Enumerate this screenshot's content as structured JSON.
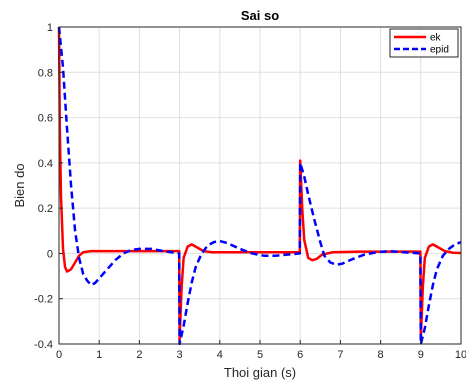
{
  "chart_data": {
    "type": "line",
    "title": "Sai so",
    "xlabel": "Thoi gian (s)",
    "ylabel": "Bien do",
    "xlim": [
      0,
      10
    ],
    "ylim": [
      -0.4,
      1
    ],
    "xticks": [
      0,
      1,
      2,
      3,
      4,
      5,
      6,
      7,
      8,
      9,
      10
    ],
    "yticks": [
      -0.4,
      -0.2,
      0,
      0.2,
      0.4,
      0.6,
      0.8,
      1
    ],
    "grid": true,
    "legend_position": "top-right",
    "series": [
      {
        "name": "ek",
        "color": "#ff0000",
        "style": "solid",
        "points": [
          [
            0,
            1
          ],
          [
            0.02,
            0.55
          ],
          [
            0.05,
            0.25
          ],
          [
            0.1,
            0.02
          ],
          [
            0.15,
            -0.06
          ],
          [
            0.2,
            -0.08
          ],
          [
            0.3,
            -0.07
          ],
          [
            0.4,
            -0.04
          ],
          [
            0.5,
            -0.01
          ],
          [
            0.6,
            0.005
          ],
          [
            0.8,
            0.01
          ],
          [
            1.2,
            0.01
          ],
          [
            2,
            0.01
          ],
          [
            2.99,
            0.01
          ],
          [
            3,
            -0.38
          ],
          [
            3.05,
            -0.15
          ],
          [
            3.1,
            -0.02
          ],
          [
            3.2,
            0.03
          ],
          [
            3.3,
            0.04
          ],
          [
            3.45,
            0.025
          ],
          [
            3.6,
            0.01
          ],
          [
            3.8,
            0.005
          ],
          [
            4.2,
            0.005
          ],
          [
            5,
            0.005
          ],
          [
            5.99,
            0.005
          ],
          [
            6,
            0.41
          ],
          [
            6.05,
            0.2
          ],
          [
            6.1,
            0.06
          ],
          [
            6.2,
            -0.02
          ],
          [
            6.3,
            -0.03
          ],
          [
            6.4,
            -0.025
          ],
          [
            6.55,
            -0.005
          ],
          [
            6.8,
            0.005
          ],
          [
            7.5,
            0.008
          ],
          [
            8.99,
            0.008
          ],
          [
            9,
            -0.38
          ],
          [
            9.05,
            -0.15
          ],
          [
            9.1,
            -0.02
          ],
          [
            9.2,
            0.03
          ],
          [
            9.3,
            0.04
          ],
          [
            9.45,
            0.025
          ],
          [
            9.6,
            0.01
          ],
          [
            9.8,
            0.003
          ],
          [
            10,
            0.002
          ]
        ]
      },
      {
        "name": "epid",
        "color": "#0000ff",
        "style": "dashed",
        "points": [
          [
            0,
            1
          ],
          [
            0.1,
            0.82
          ],
          [
            0.2,
            0.55
          ],
          [
            0.3,
            0.3
          ],
          [
            0.4,
            0.1
          ],
          [
            0.5,
            -0.02
          ],
          [
            0.6,
            -0.09
          ],
          [
            0.7,
            -0.12
          ],
          [
            0.8,
            -0.14
          ],
          [
            0.9,
            -0.13
          ],
          [
            1.0,
            -0.11
          ],
          [
            1.2,
            -0.07
          ],
          [
            1.4,
            -0.03
          ],
          [
            1.6,
            0.0
          ],
          [
            1.8,
            0.015
          ],
          [
            2.0,
            0.02
          ],
          [
            2.3,
            0.02
          ],
          [
            2.6,
            0.01
          ],
          [
            2.8,
            0.005
          ],
          [
            2.99,
            0.0
          ],
          [
            3,
            -0.4
          ],
          [
            3.1,
            -0.32
          ],
          [
            3.2,
            -0.22
          ],
          [
            3.3,
            -0.13
          ],
          [
            3.4,
            -0.06
          ],
          [
            3.55,
            0.0
          ],
          [
            3.7,
            0.035
          ],
          [
            3.85,
            0.05
          ],
          [
            4.0,
            0.055
          ],
          [
            4.2,
            0.045
          ],
          [
            4.5,
            0.02
          ],
          [
            4.8,
            0.0
          ],
          [
            5.1,
            -0.01
          ],
          [
            5.4,
            -0.01
          ],
          [
            5.7,
            -0.005
          ],
          [
            5.99,
            0.0
          ],
          [
            6,
            0.4
          ],
          [
            6.1,
            0.34
          ],
          [
            6.2,
            0.26
          ],
          [
            6.35,
            0.15
          ],
          [
            6.5,
            0.05
          ],
          [
            6.6,
            -0.01
          ],
          [
            6.75,
            -0.04
          ],
          [
            6.9,
            -0.05
          ],
          [
            7.05,
            -0.045
          ],
          [
            7.3,
            -0.025
          ],
          [
            7.6,
            -0.005
          ],
          [
            7.9,
            0.005
          ],
          [
            8.2,
            0.01
          ],
          [
            8.6,
            0.005
          ],
          [
            8.99,
            0.0
          ],
          [
            9,
            -0.4
          ],
          [
            9.1,
            -0.33
          ],
          [
            9.2,
            -0.23
          ],
          [
            9.3,
            -0.14
          ],
          [
            9.4,
            -0.07
          ],
          [
            9.55,
            -0.01
          ],
          [
            9.7,
            0.02
          ],
          [
            9.85,
            0.04
          ],
          [
            10,
            0.05
          ]
        ]
      }
    ]
  }
}
